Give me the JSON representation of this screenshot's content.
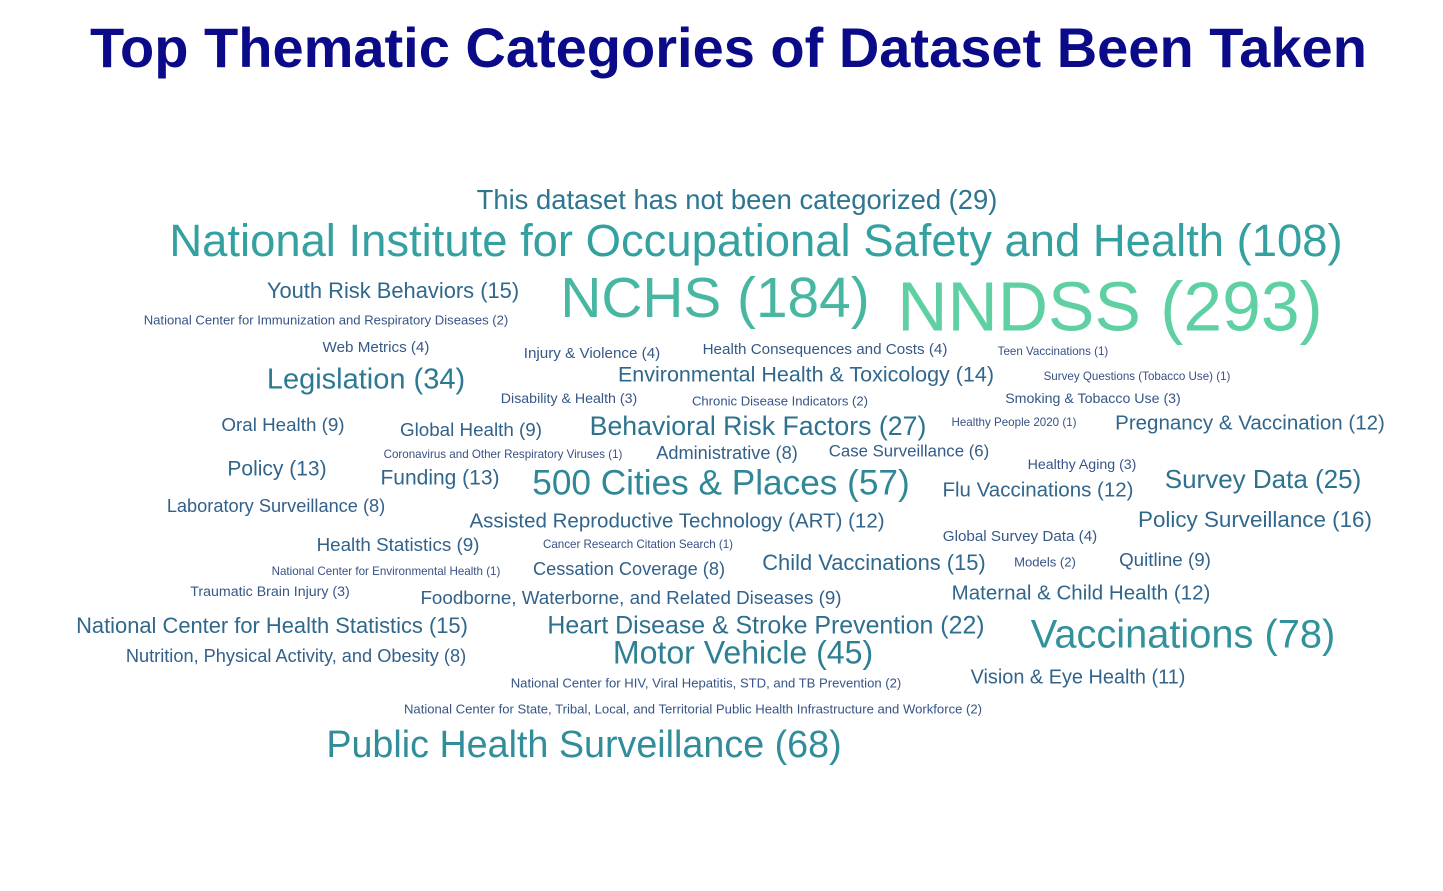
{
  "chart_data": {
    "type": "wordcloud",
    "title": "Top Thematic Categories of Dataset Been Taken",
    "words": [
      "This dataset has not been categorized (29)",
      "National Institute for Occupational Safety and Health (108)",
      "Youth Risk Behaviors (15)",
      "NCHS (184)",
      "NNDSS (293)",
      "National Center for Immunization and Respiratory Diseases (2)",
      "Web Metrics (4)",
      "Injury & Violence (4)",
      "Health Consequences and Costs (4)",
      "Teen Vaccinations (1)",
      "Legislation (34)",
      "Environmental Health & Toxicology (14)",
      "Survey Questions (Tobacco Use) (1)",
      "Disability & Health (3)",
      "Chronic Disease Indicators (2)",
      "Smoking & Tobacco Use (3)",
      "Oral Health (9)",
      "Global Health (9)",
      "Behavioral Risk Factors (27)",
      "Healthy People 2020 (1)",
      "Pregnancy & Vaccination (12)",
      "Coronavirus and Other Respiratory Viruses (1)",
      "Administrative (8)",
      "Case Surveillance (6)",
      "Policy (13)",
      "Healthy Aging (3)",
      "Funding (13)",
      "500 Cities & Places (57)",
      "Flu Vaccinations (12)",
      "Survey Data (25)",
      "Laboratory Surveillance (8)",
      "Assisted Reproductive Technology (ART) (12)",
      "Policy Surveillance (16)",
      "Global Survey Data (4)",
      "Health Statistics (9)",
      "Cancer Research Citation Search (1)",
      "Child Vaccinations (15)",
      "Models (2)",
      "Quitline (9)",
      "National Center for Environmental Health (1)",
      "Cessation Coverage (8)",
      "Traumatic Brain Injury (3)",
      "Foodborne, Waterborne, and Related Diseases (9)",
      "Maternal & Child Health (12)",
      "National Center for Health Statistics (15)",
      "Heart Disease & Stroke Prevention (22)",
      "Vaccinations (78)",
      "Nutrition, Physical Activity, and Obesity (8)",
      "Motor Vehicle (45)",
      "National Center for HIV, Viral Hepatitis, STD, and TB Prevention (2)",
      "Vision & Eye Health (11)",
      "National Center for State, Tribal, Local, and Territorial Public Health Infrastructure and Workforce (2)",
      "Public Health Surveillance (68)"
    ],
    "values": [
      29,
      108,
      15,
      184,
      293,
      2,
      4,
      4,
      4,
      1,
      34,
      14,
      1,
      3,
      2,
      3,
      9,
      9,
      27,
      1,
      12,
      1,
      8,
      6,
      13,
      3,
      13,
      57,
      12,
      25,
      8,
      12,
      16,
      4,
      9,
      1,
      15,
      2,
      9,
      1,
      8,
      3,
      9,
      12,
      15,
      22,
      78,
      8,
      45,
      2,
      11,
      2,
      68
    ]
  }
}
